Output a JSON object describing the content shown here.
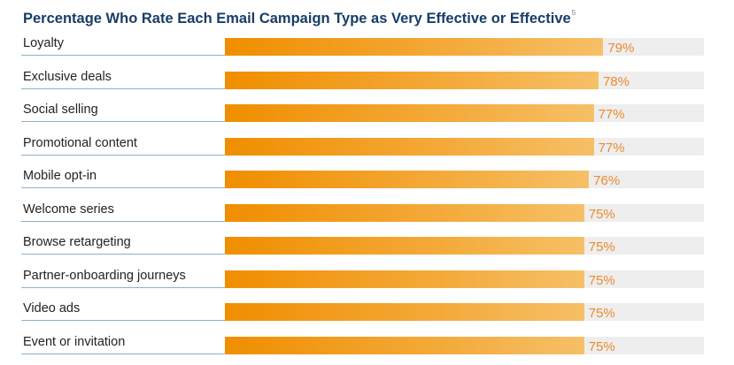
{
  "chart_data": {
    "type": "bar",
    "orientation": "horizontal",
    "title": "Percentage Who Rate Each Email Campaign Type as Very Effective or Effective",
    "title_footnote": "5",
    "categories": [
      "Loyalty",
      "Exclusive deals",
      "Social selling",
      "Promotional content",
      "Mobile opt-in",
      "Welcome series",
      "Browse retargeting",
      "Partner-onboarding journeys",
      "Video ads",
      "Event or invitation"
    ],
    "values": [
      79,
      78,
      77,
      77,
      76,
      75,
      75,
      75,
      75,
      75
    ],
    "value_labels": [
      "79%",
      "78%",
      "77%",
      "77%",
      "76%",
      "75%",
      "75%",
      "75%",
      "75%",
      "75%"
    ],
    "xlim": [
      0,
      100
    ],
    "grid": false,
    "legend": "none",
    "colors": {
      "bar_start": "#f08e00",
      "bar_end": "#f6c067",
      "track": "#eeeeee",
      "value_text": "#ea8a2c",
      "title_text": "#173d68"
    }
  }
}
